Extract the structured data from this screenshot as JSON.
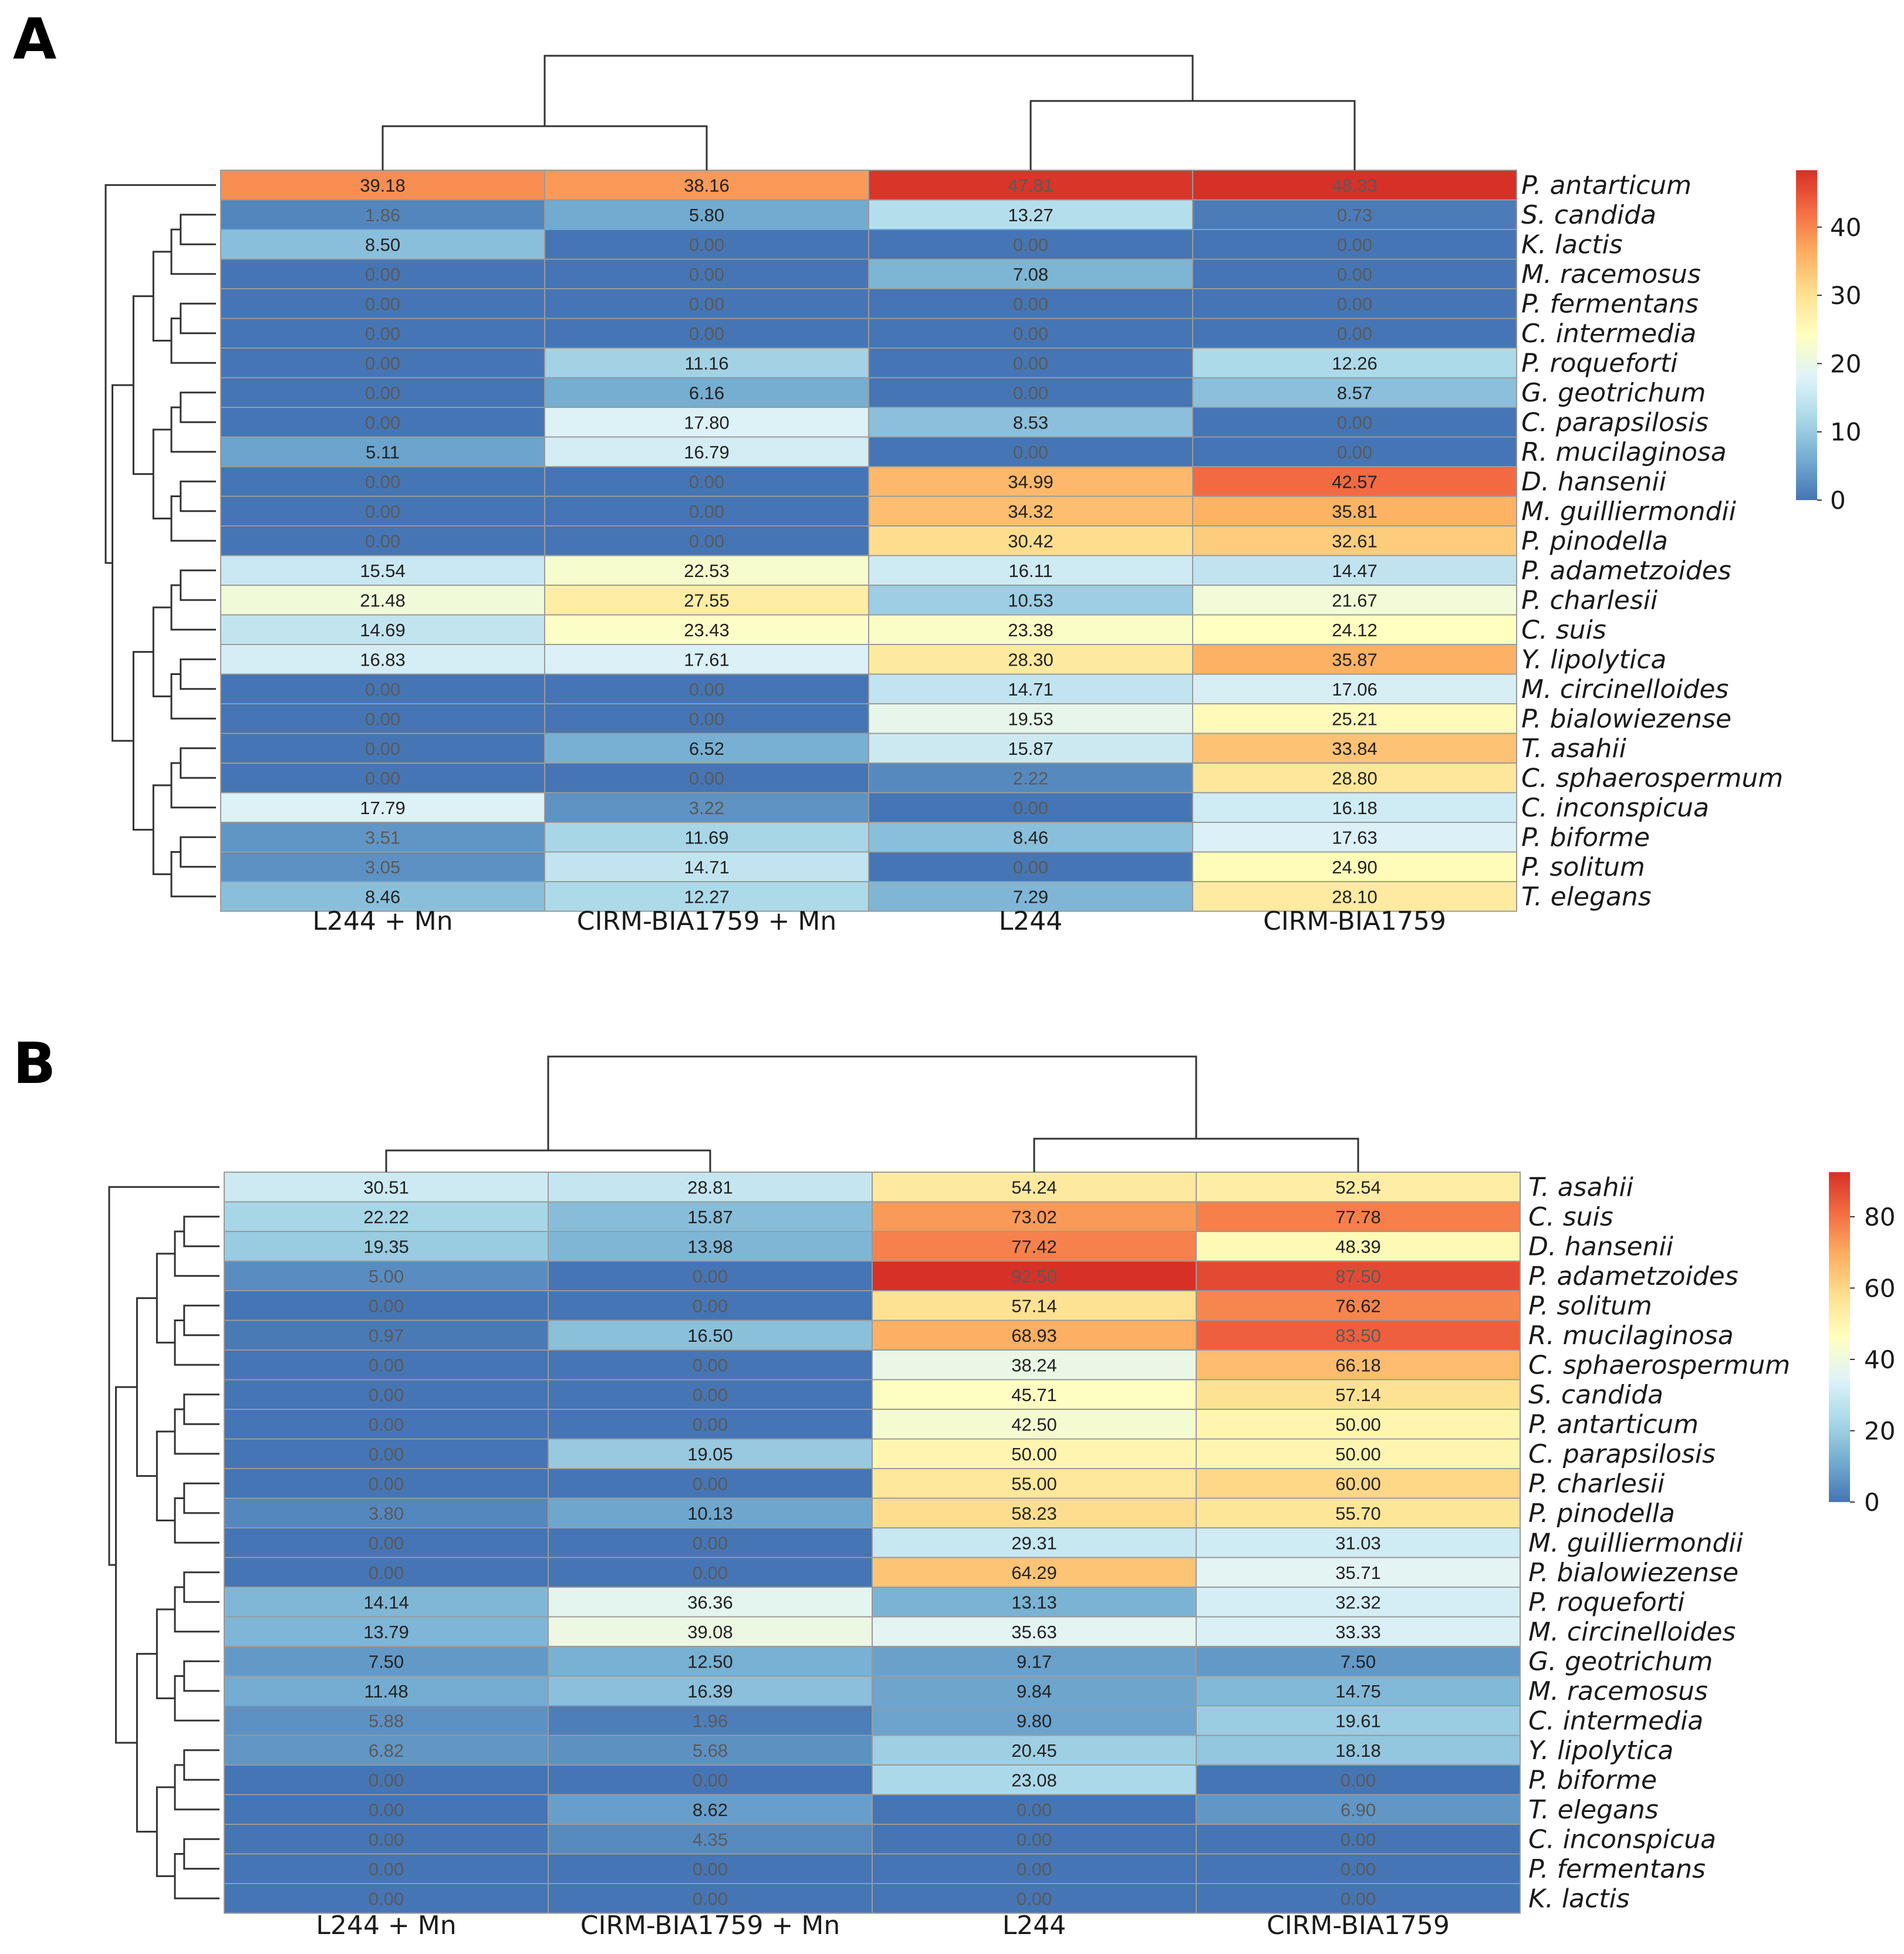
{
  "figure_colors": {
    "palette": [
      "#4575b4",
      "#74add1",
      "#abd9e9",
      "#e0f3f8",
      "#ffffbf",
      "#fee090",
      "#fdae61",
      "#f46d43",
      "#d73027"
    ],
    "dendrogram": "#333333",
    "cell_border": "#9a9a9a"
  },
  "chart_data": [
    {
      "type": "heatmap",
      "panel_label": "A",
      "columns": [
        "L244 + Mn",
        "CIRM-BIA1759 + Mn",
        "L244",
        "CIRM-BIA1759"
      ],
      "rows": [
        "P. antarticum",
        "S. candida",
        "K. lactis",
        "M. racemosus",
        "P. fermentans",
        "C. intermedia",
        "P. roqueforti",
        "G. geotrichum",
        "C. parapsilosis",
        "R. mucilaginosa",
        "D. hansenii",
        "M. guilliermondii",
        "P. pinodella",
        "P. adametzoides",
        "P. charlesii",
        "C. suis",
        "Y. lipolytica",
        "M. circinelloides",
        "P. bialowiezense",
        "T. asahii",
        "C. sphaerospermum",
        "C. inconspicua",
        "P. biforme",
        "P. solitum",
        "T. elegans"
      ],
      "values": [
        [
          39.18,
          38.16,
          47.81,
          48.33
        ],
        [
          1.86,
          5.8,
          13.27,
          0.73
        ],
        [
          8.5,
          0.0,
          0.0,
          0.0
        ],
        [
          0.0,
          0.0,
          7.08,
          0.0
        ],
        [
          0.0,
          0.0,
          0.0,
          0.0
        ],
        [
          0.0,
          0.0,
          0.0,
          0.0
        ],
        [
          0.0,
          11.16,
          0.0,
          12.26
        ],
        [
          0.0,
          6.16,
          0.0,
          8.57
        ],
        [
          0.0,
          17.8,
          8.53,
          0.0
        ],
        [
          5.11,
          16.79,
          0.0,
          0.0
        ],
        [
          0.0,
          0.0,
          34.99,
          42.57
        ],
        [
          0.0,
          0.0,
          34.32,
          35.81
        ],
        [
          0.0,
          0.0,
          30.42,
          32.61
        ],
        [
          15.54,
          22.53,
          16.11,
          14.47
        ],
        [
          21.48,
          27.55,
          10.53,
          21.67
        ],
        [
          14.69,
          23.43,
          23.38,
          24.12
        ],
        [
          16.83,
          17.61,
          28.3,
          35.87
        ],
        [
          0.0,
          0.0,
          14.71,
          17.06
        ],
        [
          0.0,
          0.0,
          19.53,
          25.21
        ],
        [
          0.0,
          6.52,
          15.87,
          33.84
        ],
        [
          0.0,
          0.0,
          2.22,
          28.8
        ],
        [
          17.79,
          3.22,
          0.0,
          16.18
        ],
        [
          3.51,
          11.69,
          8.46,
          17.63
        ],
        [
          3.05,
          14.71,
          0.0,
          24.9
        ],
        [
          8.46,
          12.27,
          7.29,
          28.1
        ]
      ],
      "color_range": [
        0,
        48.33
      ],
      "legend_ticks": [
        0,
        10,
        20,
        30,
        40
      ],
      "col_dendrogram": "{L244 + Mn, CIRM-BIA1759 + Mn} vs {L244, CIRM-BIA1759}",
      "row_dendrogram": "P. antarticum splits off first; remaining rows clustered hierarchically"
    },
    {
      "type": "heatmap",
      "panel_label": "B",
      "columns": [
        "L244 + Mn",
        "CIRM-BIA1759 + Mn",
        "L244",
        "CIRM-BIA1759"
      ],
      "rows": [
        "T. asahii",
        "C. suis",
        "D. hansenii",
        "P. adametzoides",
        "P. solitum",
        "R. mucilaginosa",
        "C. sphaerospermum",
        "S. candida",
        "P. antarticum",
        "C. parapsilosis",
        "P. charlesii",
        "P. pinodella",
        "M. guilliermondii",
        "P. bialowiezense",
        "P. roqueforti",
        "M. circinelloides",
        "G. geotrichum",
        "M. racemosus",
        "C. intermedia",
        "Y. lipolytica",
        "P. biforme",
        "T. elegans",
        "C. inconspicua",
        "P. fermentans",
        "K. lactis"
      ],
      "values": [
        [
          30.51,
          28.81,
          54.24,
          52.54
        ],
        [
          22.22,
          15.87,
          73.02,
          77.78
        ],
        [
          19.35,
          13.98,
          77.42,
          48.39
        ],
        [
          5.0,
          0.0,
          92.5,
          87.5
        ],
        [
          0.0,
          0.0,
          57.14,
          76.62
        ],
        [
          0.97,
          16.5,
          68.93,
          83.5
        ],
        [
          0.0,
          0.0,
          38.24,
          66.18
        ],
        [
          0.0,
          0.0,
          45.71,
          57.14
        ],
        [
          0.0,
          0.0,
          42.5,
          50.0
        ],
        [
          0.0,
          19.05,
          50.0,
          50.0
        ],
        [
          0.0,
          0.0,
          55.0,
          60.0
        ],
        [
          3.8,
          10.13,
          58.23,
          55.7
        ],
        [
          0.0,
          0.0,
          29.31,
          31.03
        ],
        [
          0.0,
          0.0,
          64.29,
          35.71
        ],
        [
          14.14,
          36.36,
          13.13,
          32.32
        ],
        [
          13.79,
          39.08,
          35.63,
          33.33
        ],
        [
          7.5,
          12.5,
          9.17,
          7.5
        ],
        [
          11.48,
          16.39,
          9.84,
          14.75
        ],
        [
          5.88,
          1.96,
          9.8,
          19.61
        ],
        [
          6.82,
          5.68,
          20.45,
          18.18
        ],
        [
          0.0,
          0.0,
          23.08,
          0.0
        ],
        [
          0.0,
          8.62,
          0.0,
          6.9
        ],
        [
          0.0,
          4.35,
          0.0,
          0.0
        ],
        [
          0.0,
          0.0,
          0.0,
          0.0
        ],
        [
          0.0,
          0.0,
          0.0,
          0.0
        ]
      ],
      "color_range": [
        0,
        92.5
      ],
      "legend_ticks": [
        0,
        20,
        40,
        60,
        80
      ],
      "col_dendrogram": "{L244 + Mn, CIRM-BIA1759 + Mn} vs {L244, CIRM-BIA1759}",
      "row_dendrogram": "T. asahii, C. suis, D. hansenii cluster; remaining rows clustered hierarchically"
    }
  ]
}
